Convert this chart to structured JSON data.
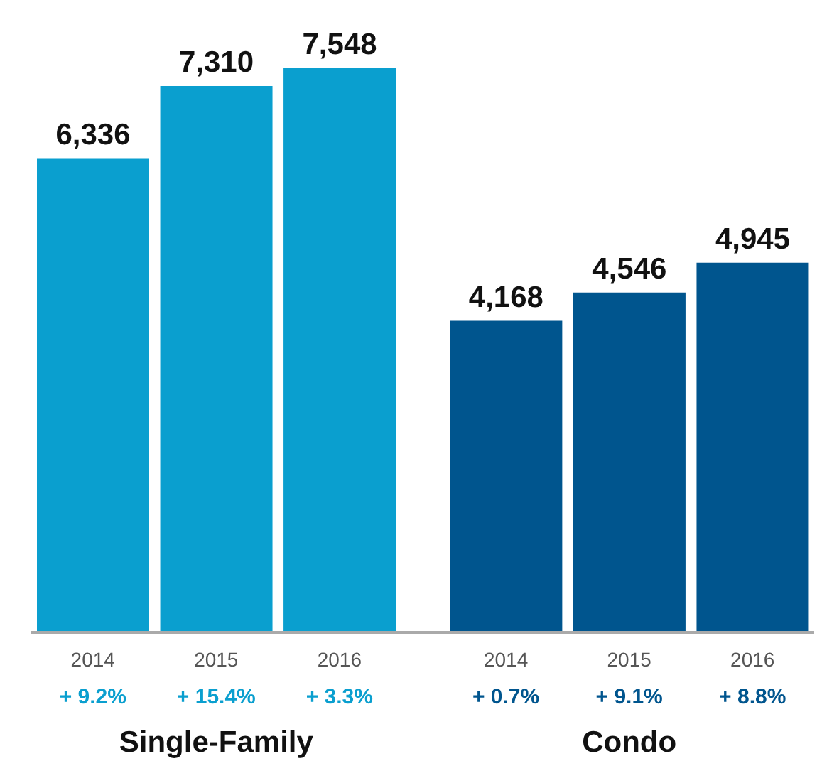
{
  "chart_data": {
    "type": "bar",
    "categories": [
      "2014",
      "2015",
      "2016",
      "2014",
      "2015",
      "2016"
    ],
    "values": [
      6336,
      7310,
      7548,
      4168,
      4546,
      4945
    ],
    "colors": [
      "#0a9fcf",
      "#0a9fcf",
      "#0a9fcf",
      "#00558e",
      "#00558e",
      "#00558e"
    ],
    "value_labels": [
      "6,336",
      "7,310",
      "7,548",
      "4,168",
      "4,546",
      "4,945"
    ],
    "tick_labels": "x",
    "grid": false,
    "legend": false,
    "annotations": [
      "+ 9.2%",
      "+ 15.4%",
      "+ 3.3%",
      "+ 0.7%",
      "+ 9.1%",
      "+ 8.8%",
      "Single-Family",
      "Condo"
    ]
  }
}
